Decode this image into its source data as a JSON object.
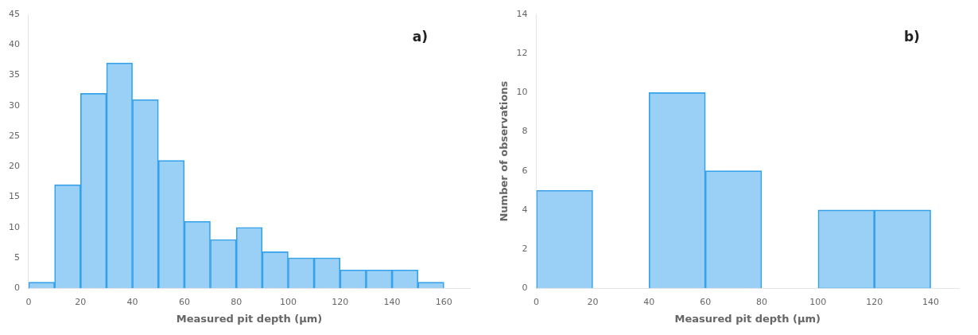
{
  "chart_data": [
    {
      "type": "histogram",
      "annotation": "a)",
      "x_label": "Measured pit depth (μm)",
      "bins": [
        0,
        10,
        20,
        30,
        40,
        50,
        60,
        70,
        80,
        90,
        100,
        110,
        120,
        130,
        140,
        150,
        160
      ],
      "values": [
        1,
        17,
        32,
        37,
        31,
        21,
        11,
        8,
        10,
        6,
        5,
        5,
        3,
        3,
        3,
        1
      ],
      "xlim": [
        0,
        170
      ],
      "xticks": [
        0,
        20,
        40,
        60,
        80,
        100,
        120,
        140,
        160
      ],
      "ylim": [
        0,
        45
      ],
      "yticks": [
        0,
        5,
        10,
        15,
        20,
        25,
        30,
        35,
        40,
        45
      ],
      "grid": false
    },
    {
      "type": "histogram",
      "annotation": "b)",
      "x_label": "Measured pit depth (μm)",
      "y_label": "Number of observations",
      "bins": [
        0,
        20,
        40,
        60,
        80,
        100,
        120,
        140
      ],
      "values": [
        5,
        0,
        10,
        6,
        0,
        4,
        4
      ],
      "xlim": [
        0,
        150
      ],
      "xticks": [
        0,
        20,
        40,
        60,
        80,
        100,
        120,
        140
      ],
      "ylim": [
        0,
        14
      ],
      "yticks": [
        0,
        2,
        4,
        6,
        8,
        10,
        12,
        14
      ],
      "grid": false
    }
  ]
}
